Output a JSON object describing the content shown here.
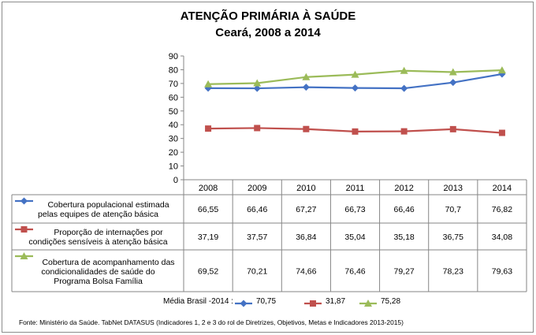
{
  "title": "ATENÇÃO PRIMÁRIA À SAÚDE",
  "subtitle": "Ceará, 2008 a 2014",
  "chart_data": {
    "type": "line",
    "title": "ATENÇÃO PRIMÁRIA À SAÚDE",
    "subtitle": "Ceará, 2008 a 2014",
    "categories": [
      "2008",
      "2009",
      "2010",
      "2011",
      "2012",
      "2013",
      "2014"
    ],
    "ylim": [
      0,
      90
    ],
    "yticks": [
      0,
      10,
      20,
      30,
      40,
      50,
      60,
      70,
      80,
      90
    ],
    "grid": false,
    "legend": "data-table",
    "series": [
      {
        "name": "Cobertura populacional estimada pelas equipes de atenção básica",
        "label_lines": [
          "Cobertura populacional estimada",
          "pelas equipes de atenção básica"
        ],
        "color": "#4472c4",
        "marker": "diamond",
        "values": [
          66.55,
          66.46,
          67.27,
          66.73,
          66.46,
          70.7,
          76.82
        ],
        "labels": [
          "66,55",
          "66,46",
          "67,27",
          "66,73",
          "66,46",
          "70,7",
          "76,82"
        ]
      },
      {
        "name": "Proporção de internações por condições sensíveis à atenção básica",
        "label_lines": [
          "Proporção de internações por",
          "condições sensíveis à atenção básica"
        ],
        "color": "#c0504d",
        "marker": "square",
        "values": [
          37.19,
          37.57,
          36.84,
          35.04,
          35.18,
          36.75,
          34.08
        ],
        "labels": [
          "37,19",
          "37,57",
          "36,84",
          "35,04",
          "35,18",
          "36,75",
          "34,08"
        ]
      },
      {
        "name": "Cobertura de acompanhamento das condicionalidades de saúde do Programa Bolsa Família",
        "label_lines": [
          "Cobertura de acompanhamento das",
          "condicionalidades de saúde do",
          "Programa Bolsa Família"
        ],
        "color": "#9bbb59",
        "marker": "triangle",
        "values": [
          69.52,
          70.21,
          74.66,
          76.46,
          79.27,
          78.23,
          79.63
        ],
        "labels": [
          "69,52",
          "70,21",
          "74,66",
          "76,46",
          "79,27",
          "78,23",
          "79,63"
        ]
      }
    ]
  },
  "summary": {
    "label": "Média Brasil -2014 :",
    "values": [
      "70,75",
      "31,87",
      "75,28"
    ]
  },
  "source": "Fonte: Ministério da Saúde. TabNet DATASUS (Indicadores 1, 2 e 3 do rol de Diretrizes, Objetivos, Metas e Indicadores 2013-2015)"
}
